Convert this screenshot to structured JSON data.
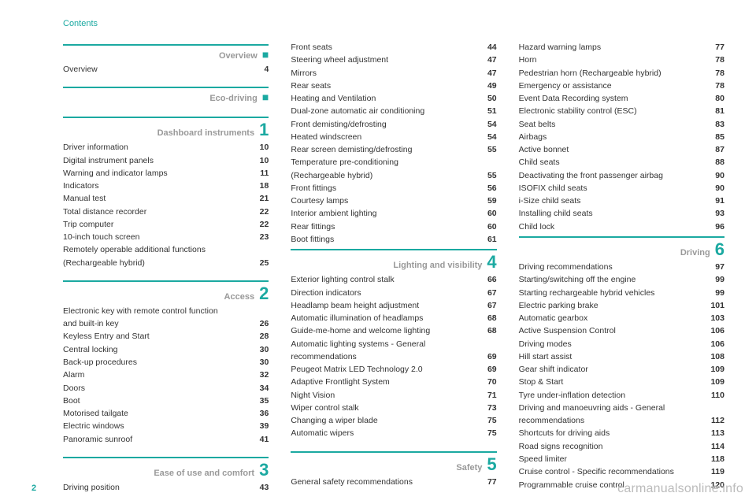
{
  "header": "Contents",
  "page_number": "2",
  "watermark": "carmanualsonline.info",
  "colors": {
    "accent": "#1ba9a1",
    "muted": "#999999",
    "text": "#333333",
    "watermark": "#bbbbbb",
    "background": "#ffffff"
  },
  "columns": [
    {
      "sections": [
        {
          "title": "Overview",
          "marker": "■",
          "entries": [
            {
              "label": "Overview",
              "page": "4"
            }
          ]
        },
        {
          "title": "Eco-driving",
          "marker": "■",
          "entries": []
        },
        {
          "title": "Dashboard instruments",
          "num": "1",
          "entries": [
            {
              "label": "Driver information",
              "page": "10"
            },
            {
              "label": "Digital instrument panels",
              "page": "10"
            },
            {
              "label": "Warning and indicator lamps",
              "page": "11"
            },
            {
              "label": "Indicators",
              "page": "18"
            },
            {
              "label": "Manual test",
              "page": "21"
            },
            {
              "label": "Total distance recorder",
              "page": "22"
            },
            {
              "label": "Trip computer",
              "page": "22"
            },
            {
              "label": "10-inch touch screen",
              "page": "23"
            },
            {
              "label": "Remotely operable additional functions",
              "page": ""
            },
            {
              "label": "(Rechargeable hybrid)",
              "page": "25"
            }
          ]
        },
        {
          "title": "Access",
          "num": "2",
          "entries": [
            {
              "label": "Electronic key with remote control function",
              "page": ""
            },
            {
              "label": "and built-in key",
              "page": "26"
            },
            {
              "label": "Keyless Entry and Start",
              "page": "28"
            },
            {
              "label": "Central locking",
              "page": "30"
            },
            {
              "label": "Back-up procedures",
              "page": "30"
            },
            {
              "label": "Alarm",
              "page": "32"
            },
            {
              "label": "Doors",
              "page": "34"
            },
            {
              "label": "Boot",
              "page": "35"
            },
            {
              "label": "Motorised tailgate",
              "page": "36"
            },
            {
              "label": "Electric windows",
              "page": "39"
            },
            {
              "label": "Panoramic sunroof",
              "page": "41"
            }
          ]
        },
        {
          "title": "Ease of use and comfort",
          "num": "3",
          "entries": [
            {
              "label": "Driving position",
              "page": "43"
            }
          ]
        }
      ]
    },
    {
      "sections": [
        {
          "entries": [
            {
              "label": "Front seats",
              "page": "44"
            },
            {
              "label": "Steering wheel adjustment",
              "page": "47"
            },
            {
              "label": "Mirrors",
              "page": "47"
            },
            {
              "label": "Rear seats",
              "page": "49"
            },
            {
              "label": "Heating and Ventilation",
              "page": "50"
            },
            {
              "label": "Dual-zone automatic air conditioning",
              "page": "51"
            },
            {
              "label": "Front demisting/defrosting",
              "page": "54"
            },
            {
              "label": "Heated windscreen",
              "page": "54"
            },
            {
              "label": "Rear screen demisting/defrosting",
              "page": "55"
            },
            {
              "label": "Temperature pre-conditioning",
              "page": ""
            },
            {
              "label": "(Rechargeable hybrid)",
              "page": "55"
            },
            {
              "label": "Front fittings",
              "page": "56"
            },
            {
              "label": "Courtesy lamps",
              "page": "59"
            },
            {
              "label": "Interior ambient lighting",
              "page": "60"
            },
            {
              "label": "Rear fittings",
              "page": "60"
            },
            {
              "label": "Boot fittings",
              "page": "61"
            }
          ]
        },
        {
          "title": "Lighting and visibility",
          "num": "4",
          "entries": [
            {
              "label": "Exterior lighting control stalk",
              "page": "66"
            },
            {
              "label": "Direction indicators",
              "page": "67"
            },
            {
              "label": "Headlamp beam height adjustment",
              "page": "67"
            },
            {
              "label": "Automatic illumination of headlamps",
              "page": "68"
            },
            {
              "label": "Guide-me-home and welcome lighting",
              "page": "68"
            },
            {
              "label": "Automatic lighting systems - General",
              "page": ""
            },
            {
              "label": "recommendations",
              "page": "69"
            },
            {
              "label": "Peugeot Matrix LED Technology 2.0",
              "page": "69"
            },
            {
              "label": "Adaptive Frontlight System",
              "page": "70"
            },
            {
              "label": "Night Vision",
              "page": "71"
            },
            {
              "label": "Wiper control stalk",
              "page": "73"
            },
            {
              "label": "Changing a wiper blade",
              "page": "75"
            },
            {
              "label": "Automatic wipers",
              "page": "75"
            }
          ]
        },
        {
          "title": "Safety",
          "num": "5",
          "entries": [
            {
              "label": "General safety recommendations",
              "page": "77"
            }
          ]
        }
      ]
    },
    {
      "sections": [
        {
          "entries": [
            {
              "label": "Hazard warning lamps",
              "page": "77"
            },
            {
              "label": "Horn",
              "page": "78"
            },
            {
              "label": "Pedestrian horn (Rechargeable hybrid)",
              "page": "78"
            },
            {
              "label": "Emergency or assistance",
              "page": "78"
            },
            {
              "label": "Event Data Recording system",
              "page": "80"
            },
            {
              "label": "Electronic stability control (ESC)",
              "page": "81"
            },
            {
              "label": "Seat belts",
              "page": "83"
            },
            {
              "label": "Airbags",
              "page": "85"
            },
            {
              "label": "Active bonnet",
              "page": "87"
            },
            {
              "label": "Child seats",
              "page": "88"
            },
            {
              "label": "Deactivating the front passenger airbag",
              "page": "90"
            },
            {
              "label": "ISOFIX child seats",
              "page": "90"
            },
            {
              "label": "i-Size child seats",
              "page": "91"
            },
            {
              "label": "Installing child seats",
              "page": "93"
            },
            {
              "label": "Child lock",
              "page": "96"
            }
          ]
        },
        {
          "title": "Driving",
          "num": "6",
          "entries": [
            {
              "label": "Driving recommendations",
              "page": "97"
            },
            {
              "label": "Starting/switching off the engine",
              "page": "99"
            },
            {
              "label": "Starting rechargeable hybrid vehicles",
              "page": "99"
            },
            {
              "label": "Electric parking brake",
              "page": "101"
            },
            {
              "label": "Automatic gearbox",
              "page": "103"
            },
            {
              "label": "Active Suspension Control",
              "page": "106"
            },
            {
              "label": "Driving modes",
              "page": "106"
            },
            {
              "label": "Hill start assist",
              "page": "108"
            },
            {
              "label": "Gear shift indicator",
              "page": "109"
            },
            {
              "label": "Stop & Start",
              "page": "109"
            },
            {
              "label": "Tyre under-inflation detection",
              "page": "110"
            },
            {
              "label": "Driving and manoeuvring aids - General",
              "page": ""
            },
            {
              "label": "recommendations",
              "page": "112"
            },
            {
              "label": "Shortcuts for driving aids",
              "page": "113"
            },
            {
              "label": "Road signs recognition",
              "page": "114"
            },
            {
              "label": "Speed limiter",
              "page": "118"
            },
            {
              "label": "Cruise control - Specific recommendations",
              "page": "119"
            },
            {
              "label": "Programmable cruise control",
              "page": "120"
            }
          ]
        }
      ]
    }
  ]
}
